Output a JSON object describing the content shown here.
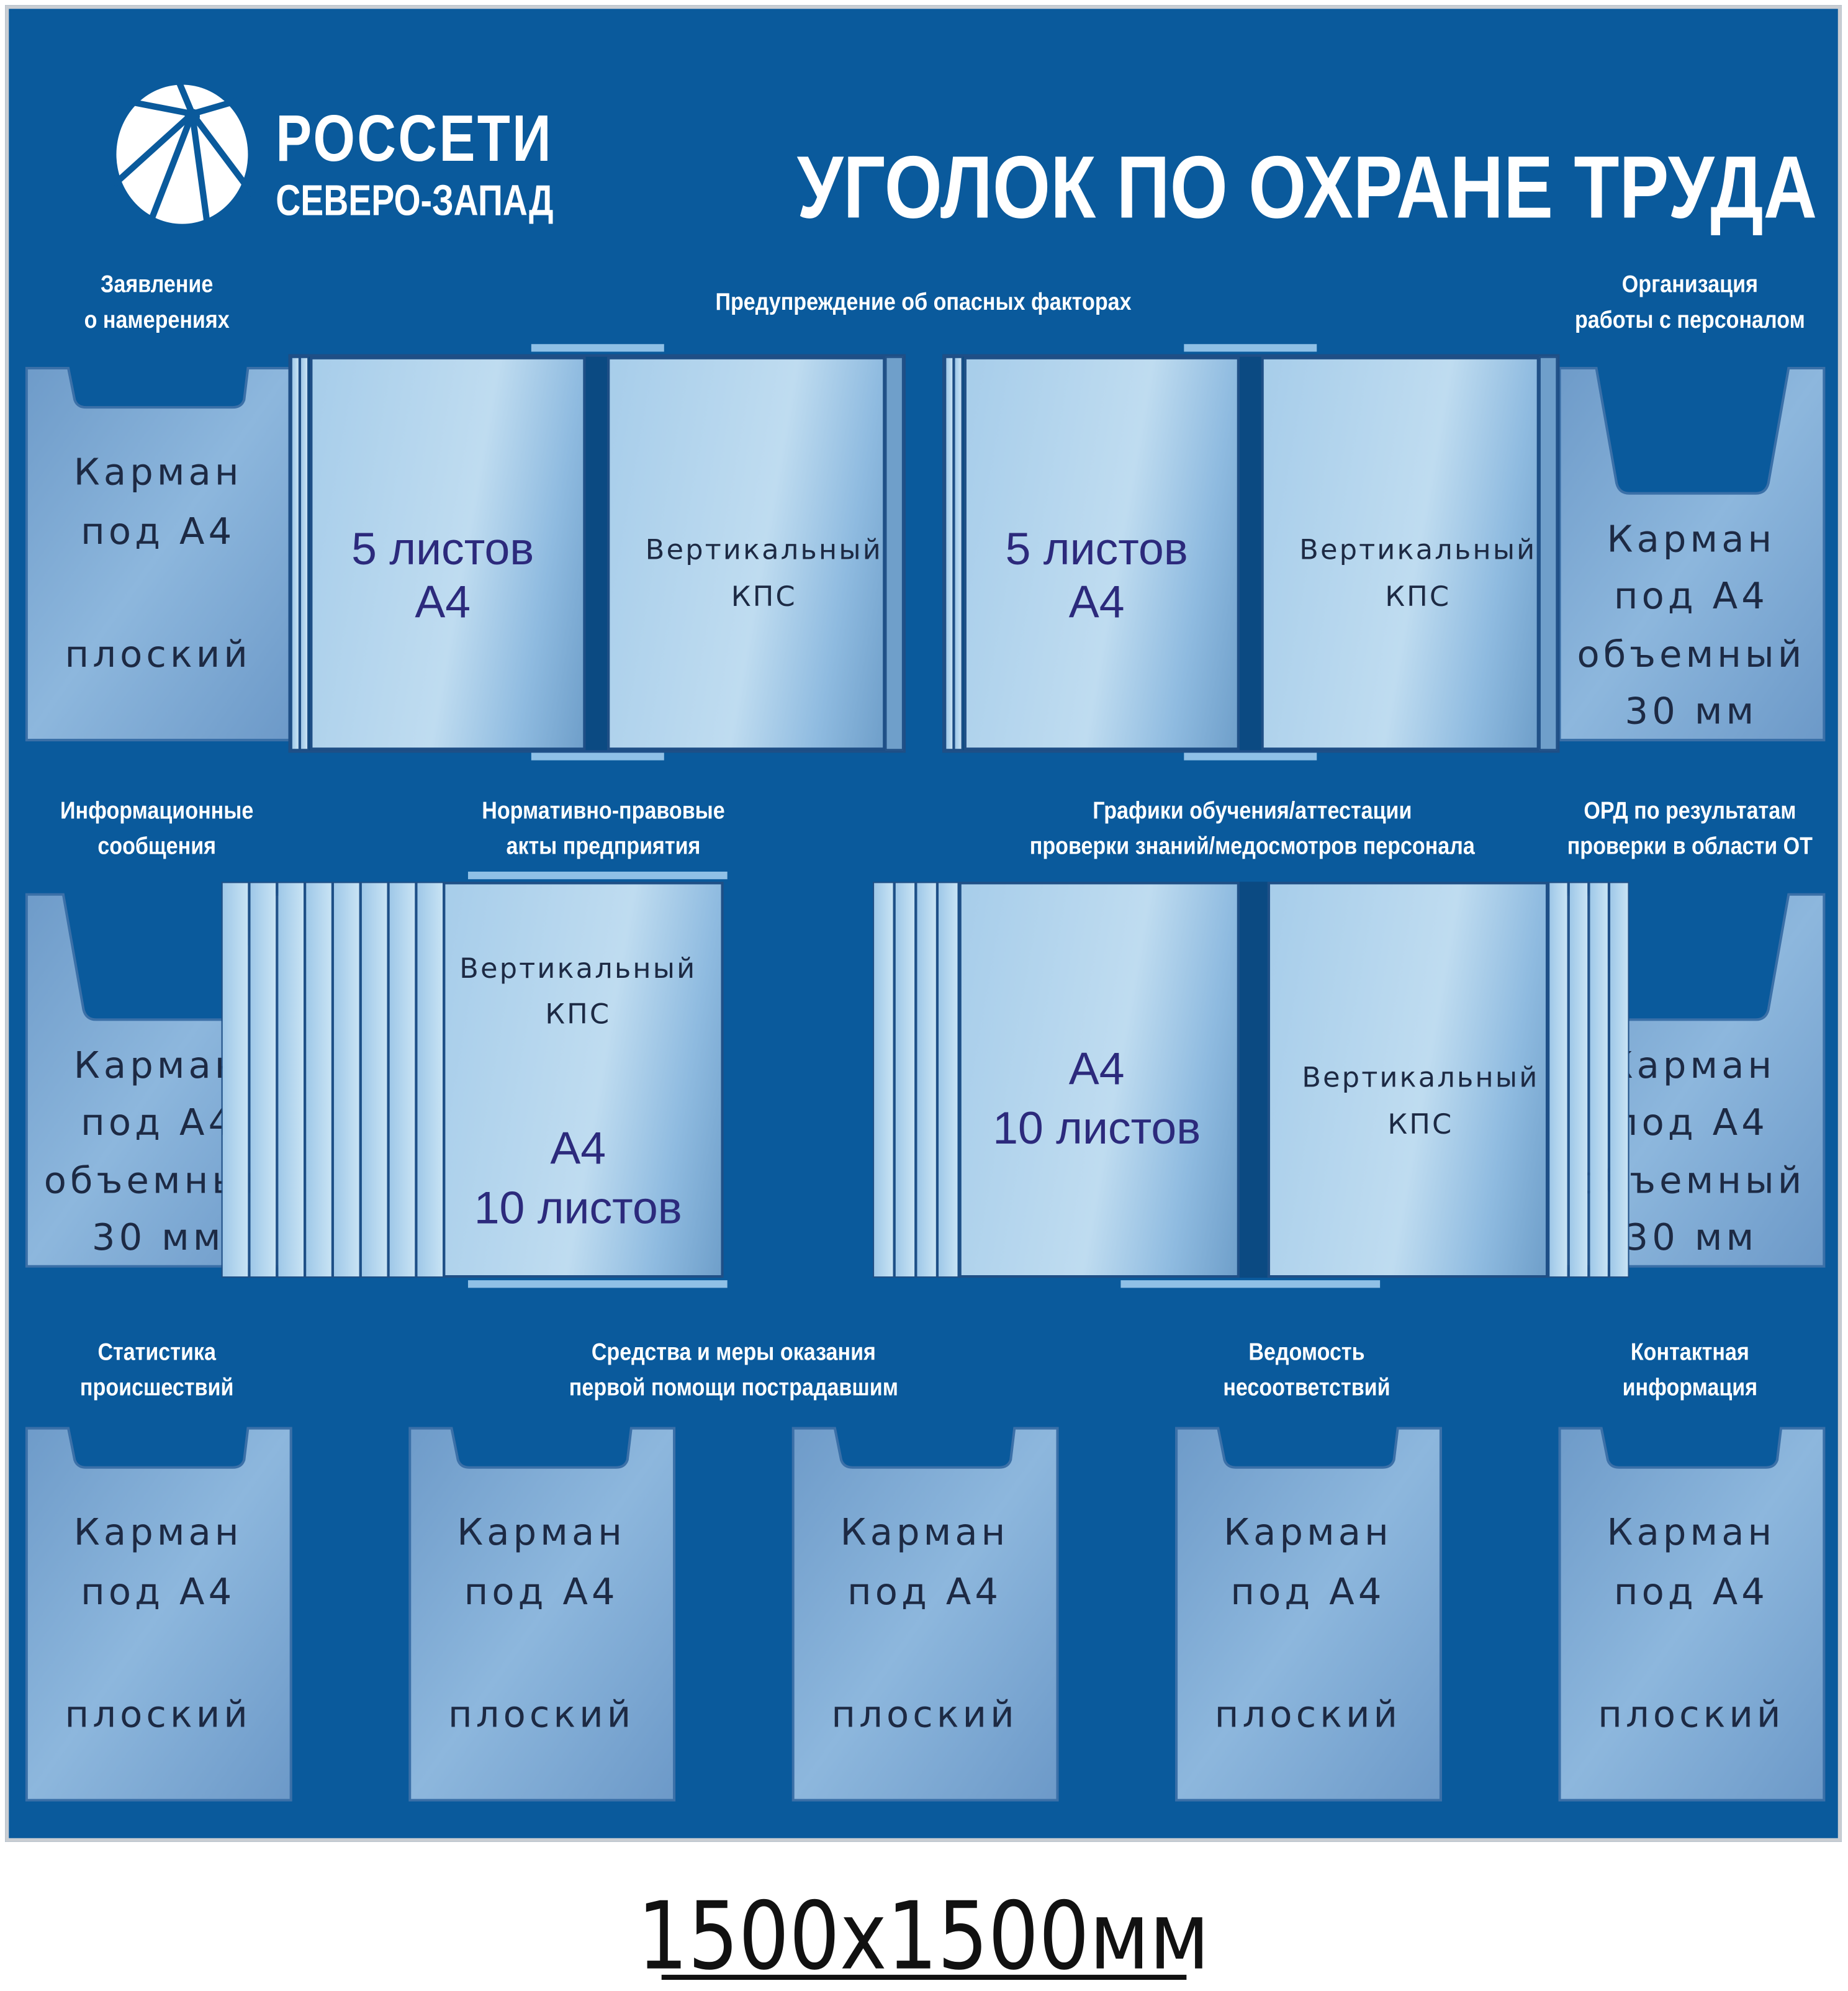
{
  "header": {
    "logo_line1": "РОССЕТИ",
    "logo_line2": "СЕВЕРО-ЗАПАД",
    "title": "УГОЛОК ПО ОХРАНЕ ТРУДА"
  },
  "sections": [
    {
      "label": [
        "Заявление",
        "о намерениях"
      ]
    },
    {
      "label": [
        "Предупреждение об опасных факторах"
      ]
    },
    {
      "label": [
        "Организация",
        "работы с персоналом"
      ]
    },
    {
      "label": [
        "Информационные",
        "сообщения"
      ]
    },
    {
      "label": [
        "Нормативно-правовые",
        "акты предприятия"
      ]
    },
    {
      "label": [
        "Графики обучения/аттестации",
        "проверки знаний/медосмотров персонала"
      ]
    },
    {
      "label": [
        "ОРД по результатам",
        "проверки в области ОТ"
      ]
    },
    {
      "label": [
        "Статистика",
        "происшествий"
      ]
    },
    {
      "label": [
        "Средства и меры оказания",
        "первой помощи пострадавшим"
      ]
    },
    {
      "label": [
        "Ведомость",
        "несоответствий"
      ]
    },
    {
      "label": [
        "Контактная",
        "информация"
      ]
    }
  ],
  "pocket_flat": [
    "Карман",
    "под А4",
    "плоский"
  ],
  "pocket_volume": [
    "Карман",
    "под А4",
    "объемный",
    "30 мм"
  ],
  "kps_vertical": [
    "Вертикальный",
    "КПС"
  ],
  "kps_5": [
    "5 листов",
    "А4"
  ],
  "kps_10": [
    "А4",
    "10 листов"
  ],
  "footer": {
    "size": "1500х1500мм"
  },
  "colors": {
    "board": "#0a5a9c",
    "pocket": "#7fa9d3",
    "kps_page": "#a9d0ea",
    "text_dark": "#1d2a44",
    "text_kps": "#2c2a7c"
  }
}
